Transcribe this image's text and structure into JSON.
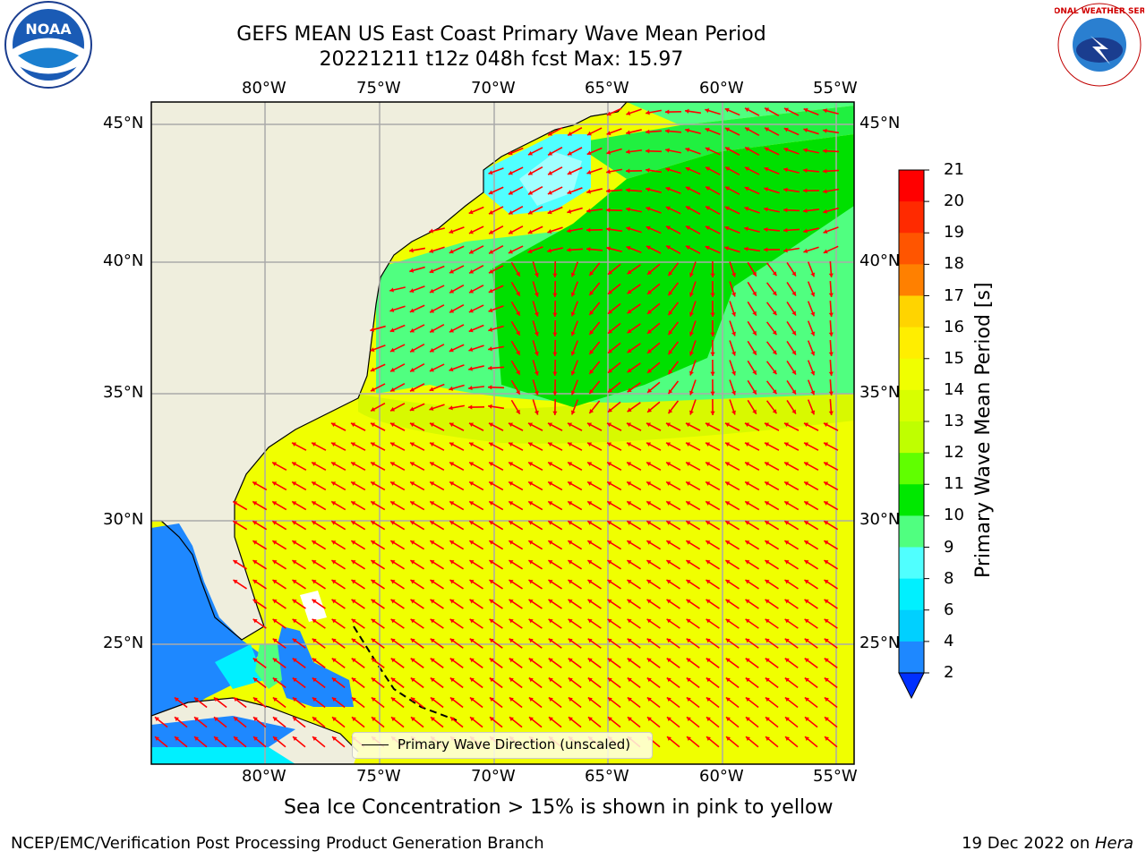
{
  "header": {
    "title_line1": "GEFS MEAN US East Coast Primary Wave Mean Period",
    "title_line2": "20221211 t12z 048h fcst   Max: 15.97"
  },
  "logos": {
    "left": "NOAA",
    "right_text": "NATIONAL WEATHER SERVICE"
  },
  "map": {
    "lon_labels": [
      "80°W",
      "75°W",
      "70°W",
      "65°W",
      "60°W",
      "55°W"
    ],
    "lat_labels": [
      "45°N",
      "40°N",
      "35°N",
      "30°N",
      "25°N"
    ],
    "legend_label": "Primary Wave Direction (unscaled)",
    "colors": {
      "land": "#efeedd",
      "ocean_blue": "#1e88ff",
      "cyan": "#00f0ff",
      "green": "#00e000",
      "light_green": "#50ff80",
      "yellow": "#f0ff00",
      "arrow": "#ff0000"
    }
  },
  "colorbar": {
    "label": "Primary Wave Mean Period [s]",
    "ticks": [
      "21",
      "20",
      "19",
      "18",
      "17",
      "16",
      "15",
      "14",
      "13",
      "12",
      "11",
      "10",
      "9",
      "8",
      "6",
      "4",
      "2"
    ],
    "colors": [
      "#ff0000",
      "#ff2a00",
      "#ff5500",
      "#ff8000",
      "#ffaa00",
      "#ffd400",
      "#ffee00",
      "#f0ff00",
      "#d8ff00",
      "#bfff00",
      "#60ff00",
      "#00e800",
      "#50ff80",
      "#a0ffff",
      "#50ffff",
      "#00f0ff",
      "#00d0ff",
      "#1e88ff",
      "#0030ff"
    ]
  },
  "caption": "Sea Ice Concentration > 15% is shown in pink to yellow",
  "footer": {
    "left": "NCEP/EMC/Verification Post Processing Product Generation Branch",
    "date": "19 Dec 2022 on ",
    "machine": "Hera"
  }
}
